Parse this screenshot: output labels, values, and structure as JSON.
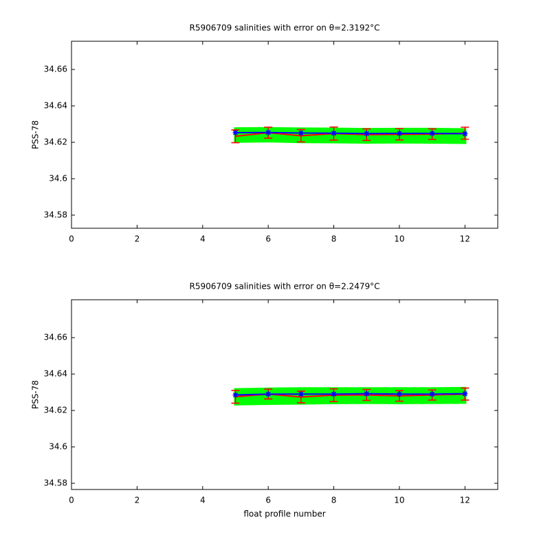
{
  "chart_data": [
    {
      "type": "line",
      "title": "R5906709 salinities with error on θ=2.3192°C",
      "ylabel": "PSS-78",
      "xlim": [
        0,
        13
      ],
      "xticks": [
        0,
        2,
        4,
        6,
        8,
        10,
        12
      ],
      "ylim": [
        34.5728,
        34.6755
      ],
      "yticks": [
        34.58,
        34.6,
        34.62,
        34.64,
        34.66
      ],
      "x": [
        5,
        6,
        7,
        8,
        9,
        10,
        11,
        12
      ],
      "band": {
        "color": "#00ff00",
        "lower": [
          34.6205,
          34.6207,
          34.6203,
          34.6202,
          34.62,
          34.6201,
          34.62,
          34.6198
        ],
        "upper": [
          34.6275,
          34.6276,
          34.6274,
          34.6273,
          34.6271,
          34.6272,
          34.6272,
          34.627
        ]
      },
      "series": [
        {
          "color": "#ff0000",
          "values": [
            34.6233,
            34.6253,
            34.6236,
            34.6248,
            34.6242,
            34.6244,
            34.6245,
            34.625
          ],
          "errors": [
            0.0035,
            0.003,
            0.0034,
            0.0036,
            0.0032,
            0.0031,
            0.0029,
            0.0033
          ]
        },
        {
          "color": "#0000ff",
          "values": [
            34.6253,
            34.6254,
            34.6251,
            34.625,
            34.6248,
            34.6249,
            34.6249,
            34.6247
          ]
        }
      ]
    },
    {
      "type": "line",
      "title": "R5906709 salinities with error on θ=2.2479°C",
      "ylabel": "PSS-78",
      "xlabel": "float profile number",
      "xlim": [
        0,
        13
      ],
      "xticks": [
        0,
        2,
        4,
        6,
        8,
        10,
        12
      ],
      "ylim": [
        34.5766,
        34.6808
      ],
      "yticks": [
        34.58,
        34.6,
        34.62,
        34.64,
        34.66
      ],
      "x": [
        5,
        6,
        7,
        8,
        9,
        10,
        11,
        12
      ],
      "band": {
        "color": "#00ff00",
        "lower": [
          34.6235,
          34.6238,
          34.624,
          34.6242,
          34.6243,
          34.6242,
          34.6243,
          34.6244
        ],
        "upper": [
          34.6315,
          34.6318,
          34.632,
          34.632,
          34.632,
          34.632,
          34.632,
          34.6322
        ]
      },
      "series": [
        {
          "color": "#ff0000",
          "values": [
            34.6275,
            34.629,
            34.6274,
            34.6284,
            34.6285,
            34.628,
            34.6285,
            34.629
          ],
          "errors": [
            0.0035,
            0.0027,
            0.0032,
            0.0035,
            0.003,
            0.0029,
            0.0028,
            0.0033
          ]
        },
        {
          "color": "#0000ff",
          "values": [
            34.6285,
            34.629,
            34.629,
            34.629,
            34.6292,
            34.629,
            34.629,
            34.6292
          ]
        }
      ]
    }
  ]
}
